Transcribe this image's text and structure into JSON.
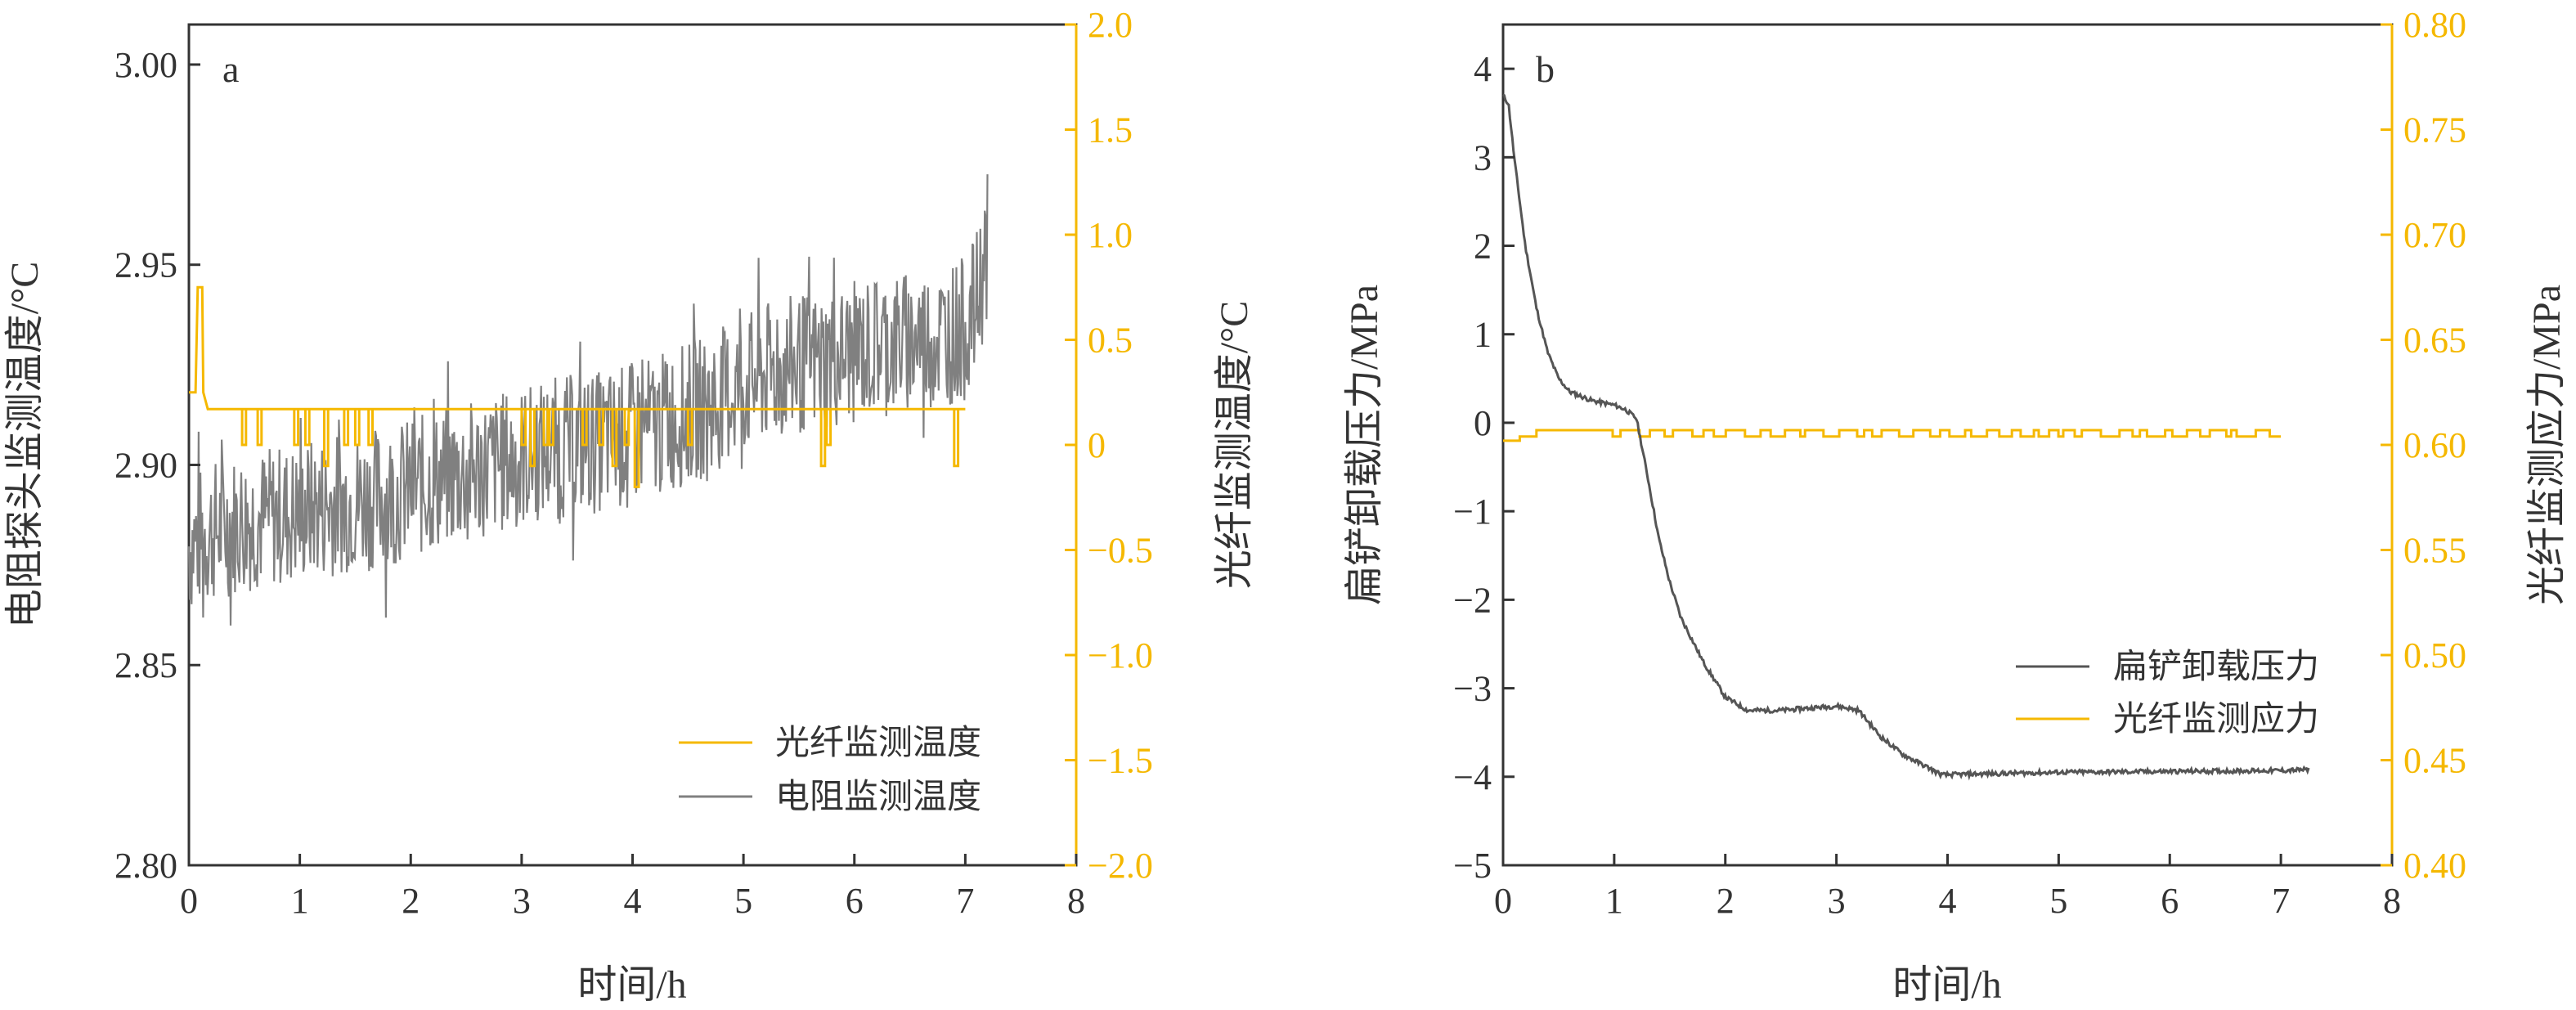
{
  "colors": {
    "gray": "#808080",
    "dark": "#555555",
    "orange": "#F5B800",
    "axis": "#333333"
  },
  "chart_data": [
    {
      "type": "line",
      "panel_label": "a",
      "xlabel": "时间/h",
      "ylabel_left": "电阻探头监测温度/°C",
      "ylabel_right": "光纤监测温度/°C",
      "xlim": [
        0,
        8
      ],
      "ylim_left": [
        2.8,
        3.01
      ],
      "ylim_right": [
        -2.0,
        2.0
      ],
      "x_ticks": [
        "0",
        "1",
        "2",
        "3",
        "4",
        "5",
        "6",
        "7",
        "8"
      ],
      "y_ticks_left": [
        "2.80",
        "2.85",
        "2.90",
        "2.95",
        "3.00"
      ],
      "y_ticks_right": [
        "−2.0",
        "−1.5",
        "−1.0",
        "−0.5",
        "0",
        "0.5",
        "1.0",
        "1.5",
        "2.0"
      ],
      "legend": [
        "光纤监测温度",
        "电阻监测温度"
      ],
      "legend_position": "bottom-right",
      "series": [
        {
          "name": "电阻监测温度",
          "axis": "left",
          "color": "#808080",
          "x": [
            0,
            0.25,
            0.5,
            0.75,
            1.0,
            1.25,
            1.5,
            1.75,
            2.0,
            2.25,
            2.5,
            2.75,
            3.0,
            3.25,
            3.5,
            3.75,
            4.0,
            4.25,
            4.5,
            4.75,
            5.0,
            5.25,
            5.5,
            5.75,
            6.0,
            6.25,
            6.5,
            6.75,
            7.0,
            7.1,
            7.2
          ],
          "y": [
            2.88,
            2.884,
            2.886,
            2.887,
            2.888,
            2.89,
            2.891,
            2.892,
            2.894,
            2.896,
            2.898,
            2.9,
            2.902,
            2.904,
            2.905,
            2.906,
            2.908,
            2.91,
            2.913,
            2.916,
            2.92,
            2.923,
            2.925,
            2.926,
            2.928,
            2.93,
            2.931,
            2.932,
            2.934,
            2.94,
            2.955
          ],
          "noise_amplitude": 0.018
        },
        {
          "name": "光纤监测温度",
          "axis": "right",
          "color": "#F5B800",
          "baseline": 0.17,
          "x": [
            0,
            0.06,
            0.08,
            0.12,
            0.13,
            0.17,
            7.0
          ],
          "y": [
            0.25,
            0.25,
            0.75,
            0.75,
            0.25,
            0.17,
            0.17
          ],
          "dips_x": [
            0.48,
            0.62,
            0.95,
            1.05,
            1.22,
            1.4,
            1.5,
            1.62,
            3.0,
            3.08,
            3.2,
            3.25,
            3.55,
            3.7,
            3.82,
            3.93,
            4.02,
            4.5,
            5.7,
            5.75,
            6.9
          ],
          "dips_y": [
            0.0,
            0.0,
            0.0,
            0.0,
            -0.1,
            0.0,
            0.0,
            0.0,
            0.0,
            -0.1,
            0.0,
            0.0,
            0.0,
            0.0,
            -0.1,
            0.0,
            -0.2,
            0.0,
            -0.1,
            0.0,
            -0.1
          ]
        }
      ]
    },
    {
      "type": "line",
      "panel_label": "b",
      "xlabel": "时间/h",
      "ylabel_left": "扁铲卸载压力/MPa",
      "ylabel_right": "光纤监测应力/MPa",
      "xlim": [
        0,
        8
      ],
      "ylim_left": [
        -5,
        4.5
      ],
      "ylim_right": [
        0.4,
        0.8
      ],
      "x_ticks": [
        "0",
        "1",
        "2",
        "3",
        "4",
        "5",
        "6",
        "7",
        "8"
      ],
      "y_ticks_left": [
        "−5",
        "−4",
        "−3",
        "−2",
        "−1",
        "0",
        "1",
        "2",
        "3",
        "4"
      ],
      "y_ticks_right": [
        "0.40",
        "0.45",
        "0.50",
        "0.55",
        "0.60",
        "0.65",
        "0.70",
        "0.75",
        "0.80"
      ],
      "legend": [
        "扁铲卸载压力",
        "光纤监测应力"
      ],
      "legend_position": "bottom-right",
      "series": [
        {
          "name": "扁铲卸载压力",
          "axis": "left",
          "color": "#555555",
          "x": [
            0,
            0.05,
            0.1,
            0.2,
            0.3,
            0.4,
            0.5,
            0.6,
            0.8,
            1.0,
            1.1,
            1.2,
            1.3,
            1.4,
            1.5,
            1.6,
            1.8,
            2.0,
            2.2,
            2.5,
            3.0,
            3.2,
            3.4,
            3.6,
            3.8,
            3.95,
            4.2,
            5.0,
            6.0,
            7.0,
            7.25
          ],
          "y": [
            3.7,
            3.6,
            3.0,
            2.0,
            1.3,
            0.8,
            0.5,
            0.35,
            0.25,
            0.2,
            0.15,
            0.05,
            -0.6,
            -1.3,
            -1.8,
            -2.2,
            -2.7,
            -3.1,
            -3.25,
            -3.25,
            -3.2,
            -3.25,
            -3.55,
            -3.75,
            -3.88,
            -3.98,
            -3.97,
            -3.95,
            -3.94,
            -3.93,
            -3.92
          ]
        },
        {
          "name": "光纤监测应力",
          "axis": "right",
          "color": "#F5B800",
          "x": [
            0,
            0.15,
            0.15,
            0.3,
            0.3,
            0.6,
            7.0
          ],
          "y": [
            0.602,
            0.602,
            0.604,
            0.604,
            0.607,
            0.607,
            0.604
          ],
          "toggle_range": [
            0.9,
            6.9
          ],
          "toggle_levels": [
            0.604,
            0.607
          ]
        }
      ]
    }
  ]
}
